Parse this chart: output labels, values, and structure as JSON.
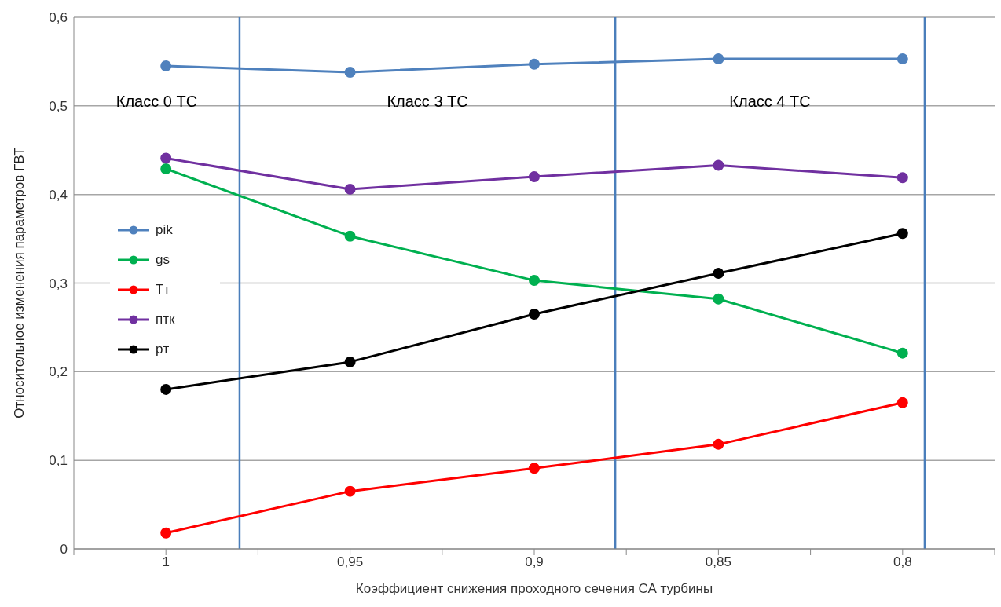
{
  "chart_data": {
    "type": "line",
    "xlabel": "Коэффициент  снижения проходного сечения СА турбины",
    "ylabel": "Относительное изменения параметров ГВТ",
    "x": [
      1,
      0.95,
      0.9,
      0.85,
      0.8
    ],
    "xlim": [
      1.025,
      0.775
    ],
    "xticks": [
      {
        "value": 1.025,
        "label": null
      },
      {
        "value": 1,
        "label": "1"
      },
      {
        "value": 0.975,
        "label": null
      },
      {
        "value": 0.95,
        "label": "0,95"
      },
      {
        "value": 0.925,
        "label": null
      },
      {
        "value": 0.9,
        "label": "0,9"
      },
      {
        "value": 0.875,
        "label": null
      },
      {
        "value": 0.85,
        "label": "0,85"
      },
      {
        "value": 0.825,
        "label": null
      },
      {
        "value": 0.8,
        "label": "0,8"
      },
      {
        "value": 0.775,
        "label": null
      }
    ],
    "ylim": [
      0,
      0.6
    ],
    "yticks": [
      {
        "value": 0,
        "label": "0"
      },
      {
        "value": 0.1,
        "label": "0,1"
      },
      {
        "value": 0.2,
        "label": "0,2"
      },
      {
        "value": 0.3,
        "label": "0,3"
      },
      {
        "value": 0.4,
        "label": "0,4"
      },
      {
        "value": 0.5,
        "label": "0,5"
      },
      {
        "value": 0.6,
        "label": "0,6"
      }
    ],
    "series": [
      {
        "name": "pik",
        "color": "#4f81bd",
        "values": [
          0.545,
          0.538,
          0.547,
          0.553,
          0.553
        ]
      },
      {
        "name": "gs",
        "color": "#00b050",
        "values": [
          0.429,
          0.353,
          0.303,
          0.282,
          0.221
        ]
      },
      {
        "name": "Tт",
        "color": "#ff0000",
        "values": [
          0.018,
          0.065,
          0.091,
          0.118,
          0.165
        ]
      },
      {
        "name": "птк",
        "color": "#7030a0",
        "values": [
          0.441,
          0.406,
          0.42,
          0.433,
          0.419
        ]
      },
      {
        "name": "pт",
        "color": "#000000",
        "values": [
          0.18,
          0.211,
          0.265,
          0.311,
          0.356
        ]
      }
    ],
    "ref_lines": [
      {
        "axis": "x",
        "value": 0.98,
        "color": "#4a7ebb"
      },
      {
        "axis": "x",
        "value": 0.878,
        "color": "#4a7ebb"
      },
      {
        "axis": "x",
        "value": 0.794,
        "color": "#4a7ebb"
      }
    ],
    "annotations": [
      "Класс 0 ТС",
      "Класс 3 ТС",
      "Класс 4 ТС"
    ],
    "grid": "y",
    "legend": "left",
    "marker": "circle",
    "line_style": "solid"
  }
}
